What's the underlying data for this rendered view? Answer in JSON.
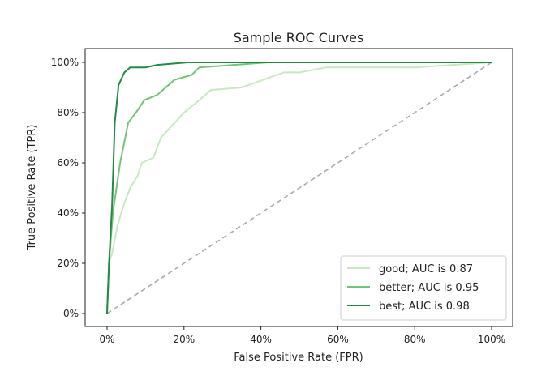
{
  "chart_data": {
    "type": "line",
    "title": "Sample ROC Curves",
    "xlabel": "False Positive Rate (FPR)",
    "ylabel": "True Positive Rate (TPR)",
    "xlim": [
      -0.05,
      1.05
    ],
    "ylim": [
      -0.05,
      1.05
    ],
    "xticks": [
      0,
      0.2,
      0.4,
      0.6,
      0.8,
      1.0
    ],
    "yticks": [
      0,
      0.2,
      0.4,
      0.6,
      0.8,
      1.0
    ],
    "xtick_labels": [
      "0%",
      "20%",
      "40%",
      "60%",
      "80%",
      "100%"
    ],
    "ytick_labels": [
      "0%",
      "20%",
      "40%",
      "60%",
      "80%",
      "100%"
    ],
    "grid": false,
    "legend_position": "lower-right",
    "series": [
      {
        "name": "good; AUC is 0.87",
        "color": "#c7e9c0",
        "x": [
          0,
          0.005,
          0.013,
          0.027,
          0.045,
          0.06,
          0.08,
          0.09,
          0.12,
          0.14,
          0.2,
          0.24,
          0.27,
          0.35,
          0.46,
          0.5,
          0.57,
          0.8,
          1.0
        ],
        "y": [
          0,
          0.2,
          0.24,
          0.35,
          0.44,
          0.5,
          0.55,
          0.6,
          0.62,
          0.7,
          0.8,
          0.85,
          0.89,
          0.9,
          0.96,
          0.96,
          0.98,
          0.98,
          1.0
        ]
      },
      {
        "name": "better; AUC is 0.95",
        "color": "#74c476",
        "x": [
          0,
          0.005,
          0.015,
          0.034,
          0.055,
          0.075,
          0.097,
          0.13,
          0.175,
          0.22,
          0.24,
          0.42,
          1.0
        ],
        "y": [
          0,
          0.2,
          0.4,
          0.6,
          0.76,
          0.8,
          0.85,
          0.87,
          0.93,
          0.95,
          0.98,
          1.0,
          1.0
        ]
      },
      {
        "name": "best; AUC is 0.98",
        "color": "#238b45",
        "x": [
          0,
          0.005,
          0.013,
          0.02,
          0.03,
          0.045,
          0.06,
          0.1,
          0.13,
          0.21,
          1.0
        ],
        "y": [
          0,
          0.2,
          0.43,
          0.76,
          0.91,
          0.96,
          0.98,
          0.98,
          0.99,
          1.0,
          1.0
        ]
      }
    ],
    "reference_line": {
      "x": [
        0,
        1
      ],
      "y": [
        0,
        1
      ],
      "color": "#aaaaaa",
      "style": "dashed"
    }
  }
}
